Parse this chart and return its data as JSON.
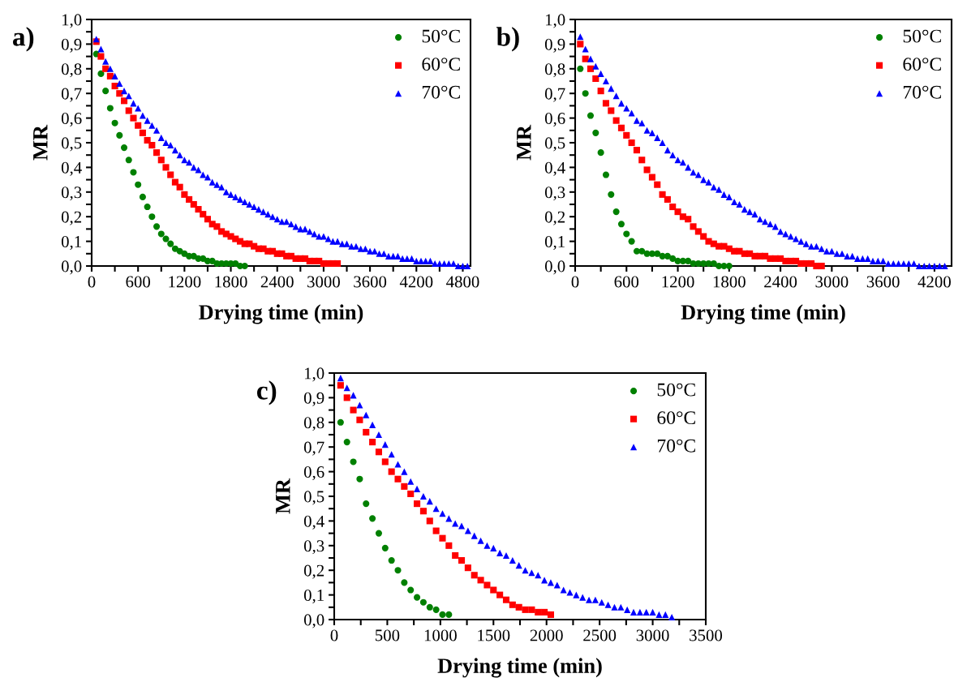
{
  "chart_data": [
    {
      "type": "scatter",
      "xlabel": "Drying time (min)",
      "ylabel": "MR",
      "annotations": [
        "a)"
      ],
      "legend": "top right",
      "xlim": [
        0,
        4900
      ],
      "ylim": [
        0,
        1
      ],
      "xticks": [
        0,
        {
          "value": 300,
          "label": null
        },
        600,
        {
          "value": 900,
          "label": null
        },
        1200,
        {
          "value": 1500,
          "label": null
        },
        1800,
        {
          "value": 2100,
          "label": null
        },
        2400,
        {
          "value": 2700,
          "label": null
        },
        3000,
        {
          "value": 3300,
          "label": null
        },
        3600,
        {
          "value": 3900,
          "label": null
        },
        4200,
        {
          "value": 4500,
          "label": null
        },
        4800
      ],
      "yticks": [
        {
          "value": 0,
          "label": "0,0"
        },
        {
          "value": 0.05,
          "label": null
        },
        {
          "value": 0.1,
          "label": "0,1"
        },
        {
          "value": 0.15,
          "label": null
        },
        {
          "value": 0.2,
          "label": "0,2"
        },
        {
          "value": 0.25,
          "label": null
        },
        {
          "value": 0.3,
          "label": "0,3"
        },
        {
          "value": 0.35,
          "label": null
        },
        {
          "value": 0.4,
          "label": "0,4"
        },
        {
          "value": 0.45,
          "label": null
        },
        {
          "value": 0.5,
          "label": "0,5"
        },
        {
          "value": 0.55,
          "label": null
        },
        {
          "value": 0.6,
          "label": "0,6"
        },
        {
          "value": 0.65,
          "label": null
        },
        {
          "value": 0.7,
          "label": "0,7"
        },
        {
          "value": 0.75,
          "label": null
        },
        {
          "value": 0.8,
          "label": "0,8"
        },
        {
          "value": 0.85,
          "label": null
        },
        {
          "value": 0.9,
          "label": "0,9"
        },
        {
          "value": 0.95,
          "label": null
        },
        {
          "value": 1,
          "label": "1,0"
        }
      ],
      "series": [
        {
          "name": "50°C",
          "color": "#008000",
          "marker": "circle",
          "x": [
            60,
            120,
            180,
            240,
            300,
            360,
            420,
            480,
            540,
            600,
            660,
            720,
            780,
            840,
            900,
            960,
            1020,
            1080,
            1140,
            1200,
            1260,
            1320,
            1380,
            1440,
            1500,
            1560,
            1620,
            1680,
            1740,
            1800,
            1860,
            1920,
            1980
          ],
          "values": [
            0.86,
            0.78,
            0.71,
            0.64,
            0.58,
            0.53,
            0.48,
            0.43,
            0.38,
            0.33,
            0.28,
            0.24,
            0.2,
            0.16,
            0.13,
            0.11,
            0.09,
            0.07,
            0.06,
            0.05,
            0.04,
            0.04,
            0.03,
            0.03,
            0.02,
            0.02,
            0.01,
            0.01,
            0.01,
            0.01,
            0.01,
            0.0,
            0.0
          ]
        },
        {
          "name": "60°C",
          "color": "#ff0000",
          "marker": "square",
          "x": [
            60,
            120,
            180,
            240,
            300,
            360,
            420,
            480,
            540,
            600,
            660,
            720,
            780,
            840,
            900,
            960,
            1020,
            1080,
            1140,
            1200,
            1260,
            1320,
            1380,
            1440,
            1500,
            1560,
            1620,
            1680,
            1740,
            1800,
            1860,
            1920,
            1980,
            2040,
            2100,
            2160,
            2220,
            2280,
            2340,
            2400,
            2460,
            2520,
            2580,
            2640,
            2700,
            2760,
            2820,
            2880,
            2940,
            3000,
            3060,
            3120,
            3180
          ],
          "values": [
            0.91,
            0.85,
            0.8,
            0.77,
            0.73,
            0.7,
            0.67,
            0.63,
            0.6,
            0.57,
            0.54,
            0.51,
            0.49,
            0.46,
            0.43,
            0.4,
            0.37,
            0.34,
            0.32,
            0.29,
            0.27,
            0.25,
            0.23,
            0.21,
            0.19,
            0.17,
            0.16,
            0.14,
            0.13,
            0.12,
            0.11,
            0.1,
            0.09,
            0.09,
            0.08,
            0.07,
            0.07,
            0.06,
            0.06,
            0.05,
            0.05,
            0.04,
            0.04,
            0.03,
            0.03,
            0.03,
            0.02,
            0.02,
            0.02,
            0.01,
            0.01,
            0.01,
            0.01
          ]
        },
        {
          "name": "70°C",
          "color": "#0000ff",
          "marker": "triangle",
          "x": [
            60,
            120,
            180,
            240,
            300,
            360,
            420,
            480,
            540,
            600,
            660,
            720,
            780,
            840,
            900,
            960,
            1020,
            1080,
            1140,
            1200,
            1260,
            1320,
            1380,
            1440,
            1500,
            1560,
            1620,
            1680,
            1740,
            1800,
            1860,
            1920,
            1980,
            2040,
            2100,
            2160,
            2220,
            2280,
            2340,
            2400,
            2460,
            2520,
            2580,
            2640,
            2700,
            2760,
            2820,
            2880,
            2940,
            3000,
            3060,
            3120,
            3180,
            3240,
            3300,
            3360,
            3420,
            3480,
            3540,
            3600,
            3660,
            3720,
            3780,
            3840,
            3900,
            3960,
            4020,
            4080,
            4140,
            4200,
            4260,
            4320,
            4380,
            4440,
            4500,
            4560,
            4620,
            4680,
            4740,
            4800,
            4860
          ],
          "values": [
            0.92,
            0.88,
            0.83,
            0.8,
            0.77,
            0.74,
            0.71,
            0.69,
            0.66,
            0.64,
            0.61,
            0.59,
            0.57,
            0.55,
            0.52,
            0.5,
            0.49,
            0.47,
            0.45,
            0.43,
            0.42,
            0.4,
            0.39,
            0.37,
            0.36,
            0.34,
            0.33,
            0.32,
            0.3,
            0.29,
            0.28,
            0.27,
            0.26,
            0.25,
            0.24,
            0.23,
            0.22,
            0.21,
            0.2,
            0.19,
            0.18,
            0.18,
            0.17,
            0.16,
            0.15,
            0.15,
            0.14,
            0.13,
            0.12,
            0.12,
            0.11,
            0.1,
            0.1,
            0.09,
            0.09,
            0.08,
            0.08,
            0.07,
            0.07,
            0.06,
            0.06,
            0.05,
            0.05,
            0.04,
            0.04,
            0.04,
            0.03,
            0.03,
            0.03,
            0.02,
            0.02,
            0.02,
            0.02,
            0.01,
            0.01,
            0.01,
            0.01,
            0.01,
            0.0,
            0.0,
            0.0
          ]
        }
      ]
    },
    {
      "type": "scatter",
      "xlabel": "Drying time (min)",
      "ylabel": "MR",
      "annotations": [
        "b)"
      ],
      "legend": "top right",
      "xlim": [
        0,
        4400
      ],
      "ylim": [
        0,
        1
      ],
      "xticks": [
        0,
        {
          "value": 300,
          "label": null
        },
        600,
        {
          "value": 900,
          "label": null
        },
        1200,
        {
          "value": 1500,
          "label": null
        },
        1800,
        {
          "value": 2100,
          "label": null
        },
        2400,
        {
          "value": 2700,
          "label": null
        },
        3000,
        {
          "value": 3300,
          "label": null
        },
        3600,
        {
          "value": 3900,
          "label": null
        },
        4200
      ],
      "yticks": [
        {
          "value": 0,
          "label": "0,0"
        },
        {
          "value": 0.05,
          "label": null
        },
        {
          "value": 0.1,
          "label": "0,1"
        },
        {
          "value": 0.15,
          "label": null
        },
        {
          "value": 0.2,
          "label": "0,2"
        },
        {
          "value": 0.25,
          "label": null
        },
        {
          "value": 0.3,
          "label": "0,3"
        },
        {
          "value": 0.35,
          "label": null
        },
        {
          "value": 0.4,
          "label": "0,4"
        },
        {
          "value": 0.45,
          "label": null
        },
        {
          "value": 0.5,
          "label": "0,5"
        },
        {
          "value": 0.55,
          "label": null
        },
        {
          "value": 0.6,
          "label": "0,6"
        },
        {
          "value": 0.65,
          "label": null
        },
        {
          "value": 0.7,
          "label": "0,7"
        },
        {
          "value": 0.75,
          "label": null
        },
        {
          "value": 0.8,
          "label": "0,8"
        },
        {
          "value": 0.85,
          "label": null
        },
        {
          "value": 0.9,
          "label": "0,9"
        },
        {
          "value": 0.95,
          "label": null
        },
        {
          "value": 1,
          "label": "1,0"
        }
      ],
      "series": [
        {
          "name": "50°C",
          "color": "#008000",
          "marker": "circle",
          "x": [
            60,
            120,
            180,
            240,
            300,
            360,
            420,
            480,
            540,
            600,
            660,
            720,
            780,
            840,
            900,
            960,
            1020,
            1080,
            1140,
            1200,
            1260,
            1320,
            1380,
            1440,
            1500,
            1560,
            1620,
            1680,
            1740,
            1800
          ],
          "values": [
            0.8,
            0.7,
            0.61,
            0.54,
            0.46,
            0.37,
            0.29,
            0.22,
            0.17,
            0.13,
            0.1,
            0.06,
            0.06,
            0.05,
            0.05,
            0.05,
            0.04,
            0.04,
            0.03,
            0.02,
            0.02,
            0.02,
            0.01,
            0.01,
            0.01,
            0.01,
            0.01,
            0.0,
            0.0,
            0.0
          ]
        },
        {
          "name": "60°C",
          "color": "#ff0000",
          "marker": "square",
          "x": [
            60,
            120,
            180,
            240,
            300,
            360,
            420,
            480,
            540,
            600,
            660,
            720,
            780,
            840,
            900,
            960,
            1020,
            1080,
            1140,
            1200,
            1260,
            1320,
            1380,
            1440,
            1500,
            1560,
            1620,
            1680,
            1740,
            1800,
            1860,
            1920,
            1980,
            2040,
            2100,
            2160,
            2220,
            2280,
            2340,
            2400,
            2460,
            2520,
            2580,
            2640,
            2700,
            2760,
            2820,
            2880
          ],
          "values": [
            0.9,
            0.84,
            0.8,
            0.76,
            0.71,
            0.66,
            0.63,
            0.59,
            0.56,
            0.53,
            0.5,
            0.47,
            0.43,
            0.39,
            0.36,
            0.33,
            0.29,
            0.27,
            0.24,
            0.22,
            0.2,
            0.19,
            0.16,
            0.14,
            0.12,
            0.1,
            0.09,
            0.08,
            0.08,
            0.07,
            0.06,
            0.06,
            0.05,
            0.05,
            0.04,
            0.04,
            0.04,
            0.03,
            0.03,
            0.03,
            0.02,
            0.02,
            0.02,
            0.01,
            0.01,
            0.01,
            0.0,
            0.0
          ]
        },
        {
          "name": "70°C",
          "color": "#0000ff",
          "marker": "triangle",
          "x": [
            60,
            120,
            180,
            240,
            300,
            360,
            420,
            480,
            540,
            600,
            660,
            720,
            780,
            840,
            900,
            960,
            1020,
            1080,
            1140,
            1200,
            1260,
            1320,
            1380,
            1440,
            1500,
            1560,
            1620,
            1680,
            1740,
            1800,
            1860,
            1920,
            1980,
            2040,
            2100,
            2160,
            2220,
            2280,
            2340,
            2400,
            2460,
            2520,
            2580,
            2640,
            2700,
            2760,
            2820,
            2880,
            2940,
            3000,
            3060,
            3120,
            3180,
            3240,
            3300,
            3360,
            3420,
            3480,
            3540,
            3600,
            3660,
            3720,
            3780,
            3840,
            3900,
            3960,
            4020,
            4080,
            4140,
            4200,
            4260,
            4320
          ],
          "values": [
            0.93,
            0.88,
            0.84,
            0.81,
            0.78,
            0.75,
            0.72,
            0.69,
            0.66,
            0.64,
            0.62,
            0.59,
            0.58,
            0.55,
            0.54,
            0.52,
            0.5,
            0.47,
            0.45,
            0.43,
            0.42,
            0.4,
            0.38,
            0.37,
            0.35,
            0.34,
            0.32,
            0.31,
            0.29,
            0.28,
            0.26,
            0.25,
            0.23,
            0.22,
            0.21,
            0.19,
            0.18,
            0.17,
            0.16,
            0.14,
            0.13,
            0.12,
            0.11,
            0.1,
            0.09,
            0.08,
            0.08,
            0.07,
            0.06,
            0.06,
            0.05,
            0.05,
            0.04,
            0.04,
            0.03,
            0.03,
            0.03,
            0.02,
            0.02,
            0.02,
            0.01,
            0.01,
            0.01,
            0.01,
            0.01,
            0.01,
            0.0,
            0.0,
            0.0,
            0.0,
            0.0,
            0.0
          ]
        }
      ]
    },
    {
      "type": "scatter",
      "xlabel": "Drying time (min)",
      "ylabel": "MR",
      "annotations": [
        "c)"
      ],
      "legend": "top right",
      "xlim": [
        0,
        3500
      ],
      "ylim": [
        0,
        1
      ],
      "xticks": [
        0,
        {
          "value": 250,
          "label": null
        },
        500,
        {
          "value": 750,
          "label": null
        },
        1000,
        {
          "value": 1250,
          "label": null
        },
        1500,
        {
          "value": 1750,
          "label": null
        },
        2000,
        {
          "value": 2250,
          "label": null
        },
        2500,
        {
          "value": 2750,
          "label": null
        },
        3000,
        {
          "value": 3250,
          "label": null
        },
        3500
      ],
      "yticks": [
        {
          "value": 0,
          "label": "0,0"
        },
        {
          "value": 0.05,
          "label": null
        },
        {
          "value": 0.1,
          "label": "0,1"
        },
        {
          "value": 0.15,
          "label": null
        },
        {
          "value": 0.2,
          "label": "0,2"
        },
        {
          "value": 0.25,
          "label": null
        },
        {
          "value": 0.3,
          "label": "0,3"
        },
        {
          "value": 0.35,
          "label": null
        },
        {
          "value": 0.4,
          "label": "0,4"
        },
        {
          "value": 0.45,
          "label": null
        },
        {
          "value": 0.5,
          "label": "0,5"
        },
        {
          "value": 0.55,
          "label": null
        },
        {
          "value": 0.6,
          "label": "0,6"
        },
        {
          "value": 0.65,
          "label": null
        },
        {
          "value": 0.7,
          "label": "0,7"
        },
        {
          "value": 0.75,
          "label": null
        },
        {
          "value": 0.8,
          "label": "0,8"
        },
        {
          "value": 0.85,
          "label": null
        },
        {
          "value": 0.9,
          "label": "0,9"
        },
        {
          "value": 0.95,
          "label": null
        },
        {
          "value": 1,
          "label": "1,0"
        }
      ],
      "series": [
        {
          "name": "50°C",
          "color": "#008000",
          "marker": "circle",
          "x": [
            60,
            120,
            180,
            240,
            300,
            360,
            420,
            480,
            540,
            600,
            660,
            720,
            780,
            840,
            900,
            960,
            1020,
            1080
          ],
          "values": [
            0.8,
            0.72,
            0.64,
            0.57,
            0.47,
            0.41,
            0.35,
            0.29,
            0.24,
            0.2,
            0.15,
            0.12,
            0.09,
            0.07,
            0.05,
            0.04,
            0.02,
            0.02
          ]
        },
        {
          "name": "60°C",
          "color": "#ff0000",
          "marker": "square",
          "x": [
            60,
            120,
            180,
            240,
            300,
            360,
            420,
            480,
            540,
            600,
            660,
            720,
            780,
            840,
            900,
            960,
            1020,
            1080,
            1140,
            1200,
            1260,
            1320,
            1380,
            1440,
            1500,
            1560,
            1620,
            1680,
            1740,
            1800,
            1860,
            1920,
            1980,
            2040
          ],
          "values": [
            0.95,
            0.9,
            0.85,
            0.81,
            0.76,
            0.72,
            0.68,
            0.64,
            0.6,
            0.57,
            0.54,
            0.51,
            0.47,
            0.44,
            0.4,
            0.36,
            0.33,
            0.3,
            0.26,
            0.24,
            0.21,
            0.18,
            0.16,
            0.14,
            0.12,
            0.1,
            0.08,
            0.06,
            0.05,
            0.04,
            0.04,
            0.03,
            0.03,
            0.02
          ]
        },
        {
          "name": "70°C",
          "color": "#0000ff",
          "marker": "triangle",
          "x": [
            60,
            120,
            180,
            240,
            300,
            360,
            420,
            480,
            540,
            600,
            660,
            720,
            780,
            840,
            900,
            960,
            1020,
            1080,
            1140,
            1200,
            1260,
            1320,
            1380,
            1440,
            1500,
            1560,
            1620,
            1680,
            1740,
            1800,
            1860,
            1920,
            1980,
            2040,
            2100,
            2160,
            2220,
            2280,
            2340,
            2400,
            2460,
            2520,
            2580,
            2640,
            2700,
            2760,
            2820,
            2880,
            2940,
            3000,
            3060,
            3120,
            3180
          ],
          "values": [
            0.98,
            0.94,
            0.91,
            0.87,
            0.83,
            0.79,
            0.75,
            0.71,
            0.67,
            0.63,
            0.6,
            0.56,
            0.53,
            0.5,
            0.48,
            0.45,
            0.43,
            0.41,
            0.39,
            0.38,
            0.36,
            0.34,
            0.32,
            0.3,
            0.29,
            0.27,
            0.26,
            0.24,
            0.22,
            0.2,
            0.19,
            0.18,
            0.16,
            0.15,
            0.14,
            0.12,
            0.11,
            0.1,
            0.09,
            0.08,
            0.08,
            0.07,
            0.06,
            0.05,
            0.05,
            0.04,
            0.03,
            0.03,
            0.03,
            0.03,
            0.02,
            0.02,
            0.01
          ]
        }
      ]
    }
  ]
}
